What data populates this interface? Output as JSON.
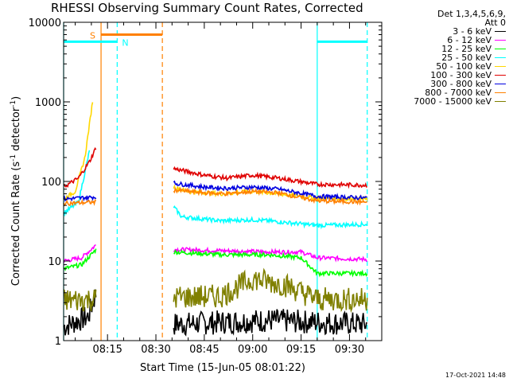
{
  "title": "RHESSI Observing Summary Count Rates, Corrected",
  "legend": {
    "header": [
      "Det 1,3,4,5,6,9,",
      "Att 0"
    ],
    "items": [
      {
        "label": "3 - 6 keV",
        "color": "#000000"
      },
      {
        "label": "6 - 12 keV",
        "color": "#ff00ff"
      },
      {
        "label": "12 - 25 keV",
        "color": "#00ff00"
      },
      {
        "label": "25 - 50 keV",
        "color": "#00ffff"
      },
      {
        "label": "50 - 100 keV",
        "color": "#ffd700"
      },
      {
        "label": "100 - 300 keV",
        "color": "#e00000"
      },
      {
        "label": "300 - 800 keV",
        "color": "#0000e0"
      },
      {
        "label": "800 - 7000 keV",
        "color": "#ff8000"
      },
      {
        "label": "7000 - 15000 keV",
        "color": "#808000"
      }
    ]
  },
  "timestamp": "17-Oct-2021 14:48",
  "chart_data": {
    "type": "line",
    "title": "RHESSI Observing Summary Count Rates, Corrected",
    "xlabel": "Start Time (15-Jun-05 08:01:22)",
    "ylabel": "Corrected Count Rate (s-1 detector-1)",
    "ylabel_parts": {
      "main": "Corrected Count Rate (s",
      "sup1": "-1",
      "mid": " detector",
      "sup2": "-1",
      "end": ")"
    },
    "ylog": true,
    "ylim": [
      1,
      10000
    ],
    "xlim": [
      481.4,
      580
    ],
    "x_ticks": [
      495,
      510,
      525,
      540,
      555,
      570
    ],
    "x_tick_labels": [
      "08:15",
      "08:30",
      "08:45",
      "09:00",
      "09:15",
      "09:30"
    ],
    "y_ticks": [
      1,
      10,
      100,
      1000,
      10000
    ],
    "y_tick_labels": [
      "1",
      "10",
      "100",
      "1000",
      "10000"
    ],
    "segments": [
      [
        481.4,
        491.5
      ],
      [
        515.5,
        575.5
      ]
    ],
    "series": [
      {
        "name": "3 - 6 keV",
        "color": "#000000",
        "noisy": true,
        "points": [
          [
            481.4,
            1.5
          ],
          [
            489,
            2
          ],
          [
            491.5,
            4
          ],
          [
            515.5,
            1.6
          ],
          [
            530,
            1.7
          ],
          [
            545,
            1.8
          ],
          [
            560,
            1.7
          ],
          [
            575.5,
            1.6
          ]
        ]
      },
      {
        "name": "6 - 12 keV",
        "color": "#ff00ff",
        "points": [
          [
            481.4,
            10
          ],
          [
            487,
            11
          ],
          [
            491.5,
            16
          ],
          [
            515.5,
            14
          ],
          [
            530,
            13.5
          ],
          [
            545,
            13
          ],
          [
            555,
            13
          ],
          [
            560,
            11
          ],
          [
            575.5,
            10.5
          ]
        ]
      },
      {
        "name": "12 - 25 keV",
        "color": "#00ff00",
        "points": [
          [
            481.4,
            8
          ],
          [
            487,
            9
          ],
          [
            491.5,
            14
          ],
          [
            515.5,
            13
          ],
          [
            530,
            12
          ],
          [
            545,
            12
          ],
          [
            555,
            11
          ],
          [
            560,
            7
          ],
          [
            575.5,
            7
          ]
        ]
      },
      {
        "name": "25 - 50 keV",
        "color": "#00ffff",
        "points": [
          [
            481.4,
            40
          ],
          [
            486,
            55
          ],
          [
            489.5,
            250
          ],
          [
            515.5,
            48
          ],
          [
            518,
            36
          ],
          [
            530,
            32
          ],
          [
            540,
            33
          ],
          [
            545,
            32
          ],
          [
            560,
            28
          ],
          [
            575.5,
            29
          ]
        ]
      },
      {
        "name": "50 - 100 keV",
        "color": "#ffd700",
        "points": [
          [
            481.4,
            60
          ],
          [
            485,
            75
          ],
          [
            488,
            200
          ],
          [
            490.5,
            1100
          ],
          [
            515.5,
            85
          ],
          [
            520,
            75
          ],
          [
            530,
            70
          ],
          [
            540,
            75
          ],
          [
            545,
            72
          ],
          [
            560,
            62
          ],
          [
            575.5,
            60
          ]
        ]
      },
      {
        "name": "100 - 300 keV",
        "color": "#e00000",
        "points": [
          [
            481.4,
            85
          ],
          [
            486,
            110
          ],
          [
            489.5,
            180
          ],
          [
            491.5,
            270
          ],
          [
            515.5,
            145
          ],
          [
            525,
            120
          ],
          [
            532,
            110
          ],
          [
            540,
            120
          ],
          [
            548,
            110
          ],
          [
            560,
            92
          ],
          [
            575.5,
            90
          ]
        ]
      },
      {
        "name": "300 - 800 keV",
        "color": "#0000e0",
        "points": [
          [
            481.4,
            60
          ],
          [
            491.5,
            64
          ],
          [
            515.5,
            95
          ],
          [
            525,
            85
          ],
          [
            532,
            82
          ],
          [
            540,
            85
          ],
          [
            548,
            80
          ],
          [
            560,
            65
          ],
          [
            575.5,
            62
          ]
        ]
      },
      {
        "name": "800 - 7000 keV",
        "color": "#ff8000",
        "points": [
          [
            481.4,
            53
          ],
          [
            491.5,
            55
          ],
          [
            515.5,
            78
          ],
          [
            525,
            72
          ],
          [
            532,
            70
          ],
          [
            540,
            75
          ],
          [
            548,
            72
          ],
          [
            560,
            57
          ],
          [
            575.5,
            55
          ]
        ]
      },
      {
        "name": "7000 - 15000 keV",
        "color": "#808000",
        "noisy": true,
        "points": [
          [
            481.4,
            3.2
          ],
          [
            491.5,
            3.3
          ],
          [
            515.5,
            3.5
          ],
          [
            530,
            3.6
          ],
          [
            540,
            6
          ],
          [
            550,
            5
          ],
          [
            560,
            3.3
          ],
          [
            575.5,
            3.3
          ]
        ]
      }
    ],
    "spans": [
      {
        "label": "S",
        "color": "#ff8000",
        "from": 493,
        "to": 512,
        "y": 7000,
        "label_color": "#ff8000"
      },
      {
        "label": "N",
        "color": "#00ffff",
        "from": 481.4,
        "to": 498,
        "y": 5700,
        "label_color": "#00ffff"
      },
      {
        "label": "",
        "color": "#00ffff",
        "from": 560,
        "to": 575.5,
        "y": 5700,
        "label_color": "#00ffff"
      }
    ],
    "vlines": [
      {
        "x": 481.4,
        "color": "#00ffff",
        "style": "solid"
      },
      {
        "x": 493,
        "color": "#ff8000",
        "style": "solid"
      },
      {
        "x": 498,
        "color": "#00ffff",
        "style": "dashed"
      },
      {
        "x": 512,
        "color": "#ff8000",
        "style": "dashed"
      },
      {
        "x": 560,
        "color": "#00ffff",
        "style": "solid"
      },
      {
        "x": 575.5,
        "color": "#00ffff",
        "style": "dashed"
      }
    ]
  }
}
